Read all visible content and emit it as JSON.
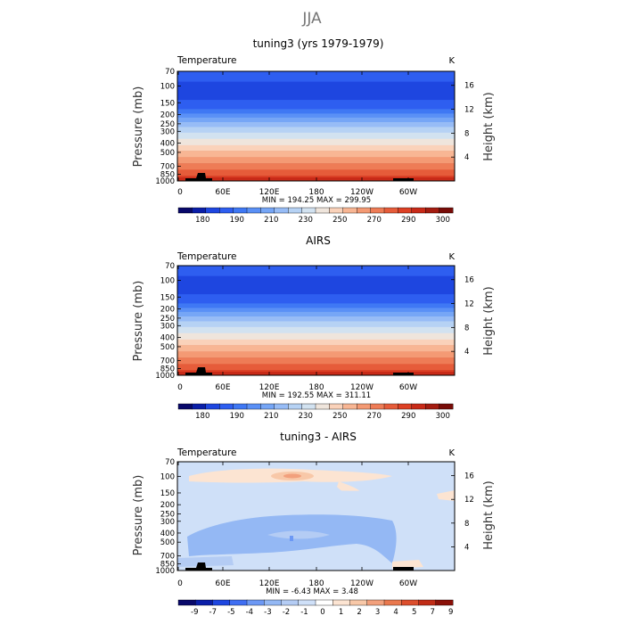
{
  "page_title": "JJA",
  "colors": {
    "abs_scale": [
      "#08086a",
      "#0a1ea8",
      "#1e46e0",
      "#2e5ef0",
      "#3f78f4",
      "#5a90f6",
      "#76a6f6",
      "#97bcf6",
      "#b6d2f4",
      "#d2e2f0",
      "#efe5dc",
      "#fad2ba",
      "#f8b694",
      "#f49a74",
      "#ee7c56",
      "#e65c3a",
      "#dd4024",
      "#c82a18",
      "#a41c10",
      "#780c08"
    ],
    "diff_scale": [
      "#08086a",
      "#0a1ea8",
      "#1e46e0",
      "#3f6ef2",
      "#6c98f4",
      "#94b8f4",
      "#b4ccf4",
      "#cfe0f8",
      "#ffffff",
      "#fce4d2",
      "#f8c8a8",
      "#f2a07c",
      "#e9784e",
      "#dc4e2c",
      "#c02c16",
      "#8a1008"
    ]
  },
  "chart_data": [
    {
      "type": "heatmap",
      "title": "tuning3 (yrs 1979-1979)",
      "left_label": "Temperature",
      "right_label": "K",
      "ylabel": "Pressure (mb)",
      "ylabel_right": "Height (km)",
      "xticks": [
        "0",
        "60E",
        "120E",
        "180",
        "120W",
        "60W"
      ],
      "yticks": [
        "70",
        "100",
        "150",
        "200",
        "250",
        "300",
        "400",
        "500",
        "700",
        "850",
        "1000"
      ],
      "height_ticks": [
        "16",
        "12",
        "8",
        "4"
      ],
      "stats": "MIN = 194.25   MAX = 299.95",
      "min": 194.25,
      "max": 299.95,
      "colorbar_labels": [
        "180",
        "190",
        "210",
        "230",
        "250",
        "270",
        "290",
        "300"
      ]
    },
    {
      "type": "heatmap",
      "title": "AIRS",
      "left_label": "Temperature",
      "right_label": "K",
      "ylabel": "Pressure (mb)",
      "ylabel_right": "Height (km)",
      "xticks": [
        "0",
        "60E",
        "120E",
        "180",
        "120W",
        "60W"
      ],
      "yticks": [
        "70",
        "100",
        "150",
        "200",
        "250",
        "300",
        "400",
        "500",
        "700",
        "850",
        "1000"
      ],
      "height_ticks": [
        "16",
        "12",
        "8",
        "4"
      ],
      "stats": "MIN = 192.55   MAX = 311.11",
      "min": 192.55,
      "max": 311.11,
      "colorbar_labels": [
        "180",
        "190",
        "210",
        "230",
        "250",
        "270",
        "290",
        "300"
      ]
    },
    {
      "type": "heatmap",
      "title": "tuning3 - AIRS",
      "left_label": "Temperature",
      "right_label": "K",
      "ylabel": "Pressure (mb)",
      "ylabel_right": "Height (km)",
      "xticks": [
        "0",
        "60E",
        "120E",
        "180",
        "120W",
        "60W"
      ],
      "yticks": [
        "70",
        "100",
        "150",
        "200",
        "250",
        "300",
        "400",
        "500",
        "700",
        "850",
        "1000"
      ],
      "height_ticks": [
        "16",
        "12",
        "8",
        "4"
      ],
      "stats": "MIN = -6.43   MAX =   3.48",
      "min": -6.43,
      "max": 3.48,
      "colorbar_labels": [
        "-9",
        "-7",
        "-5",
        "-4",
        "-3",
        "-2",
        "-1",
        "0",
        "1",
        "2",
        "3",
        "4",
        "5",
        "7",
        "9"
      ]
    }
  ]
}
